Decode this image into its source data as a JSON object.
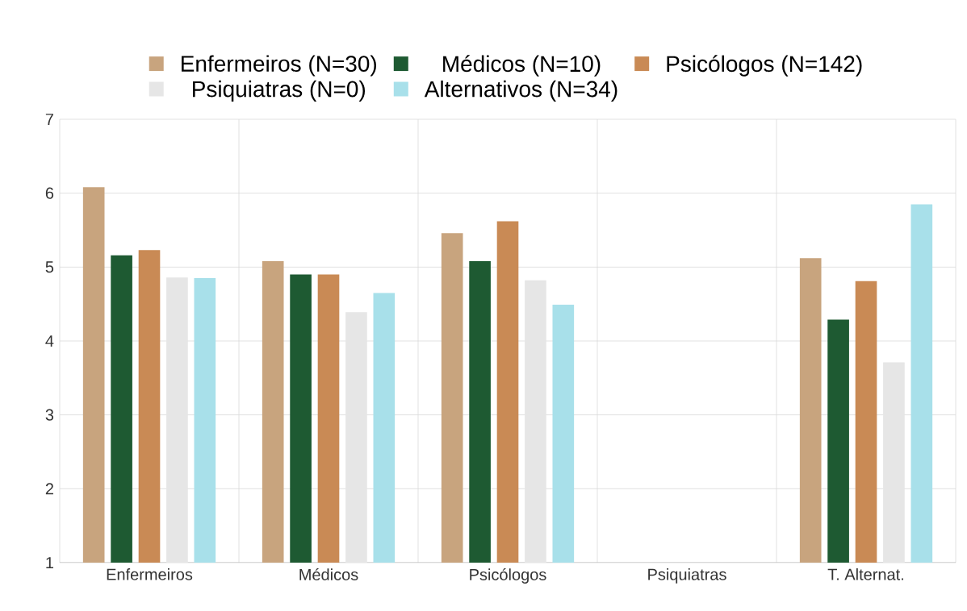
{
  "chart_data": {
    "type": "bar",
    "categories": [
      "Enfermeiros",
      "Médicos",
      "Psicólogos",
      "Psiquiatras",
      "T. Alternat."
    ],
    "series": [
      {
        "name": "Enfermeiros (N=30)",
        "color": "#c8a47e",
        "values": [
          6.08,
          5.08,
          5.46,
          null,
          5.12
        ]
      },
      {
        "name": "Médicos (N=10)",
        "color": "#1e5a32",
        "values": [
          5.16,
          4.9,
          5.08,
          null,
          4.29
        ]
      },
      {
        "name": "Psicólogos (N=142)",
        "color": "#c98a55",
        "values": [
          5.23,
          4.9,
          5.62,
          null,
          4.81
        ]
      },
      {
        "name": "Psiquiatras (N=0)",
        "color": "#e6e6e6",
        "values": [
          4.86,
          4.39,
          4.82,
          null,
          3.71
        ]
      },
      {
        "name": "Alternativos (N=34)",
        "color": "#a8e0ea",
        "values": [
          4.85,
          4.65,
          4.49,
          null,
          5.85
        ]
      }
    ],
    "ylim": [
      1,
      7
    ],
    "yticks": [
      1,
      2,
      3,
      4,
      5,
      6,
      7
    ],
    "grid": true,
    "legend": "top"
  }
}
